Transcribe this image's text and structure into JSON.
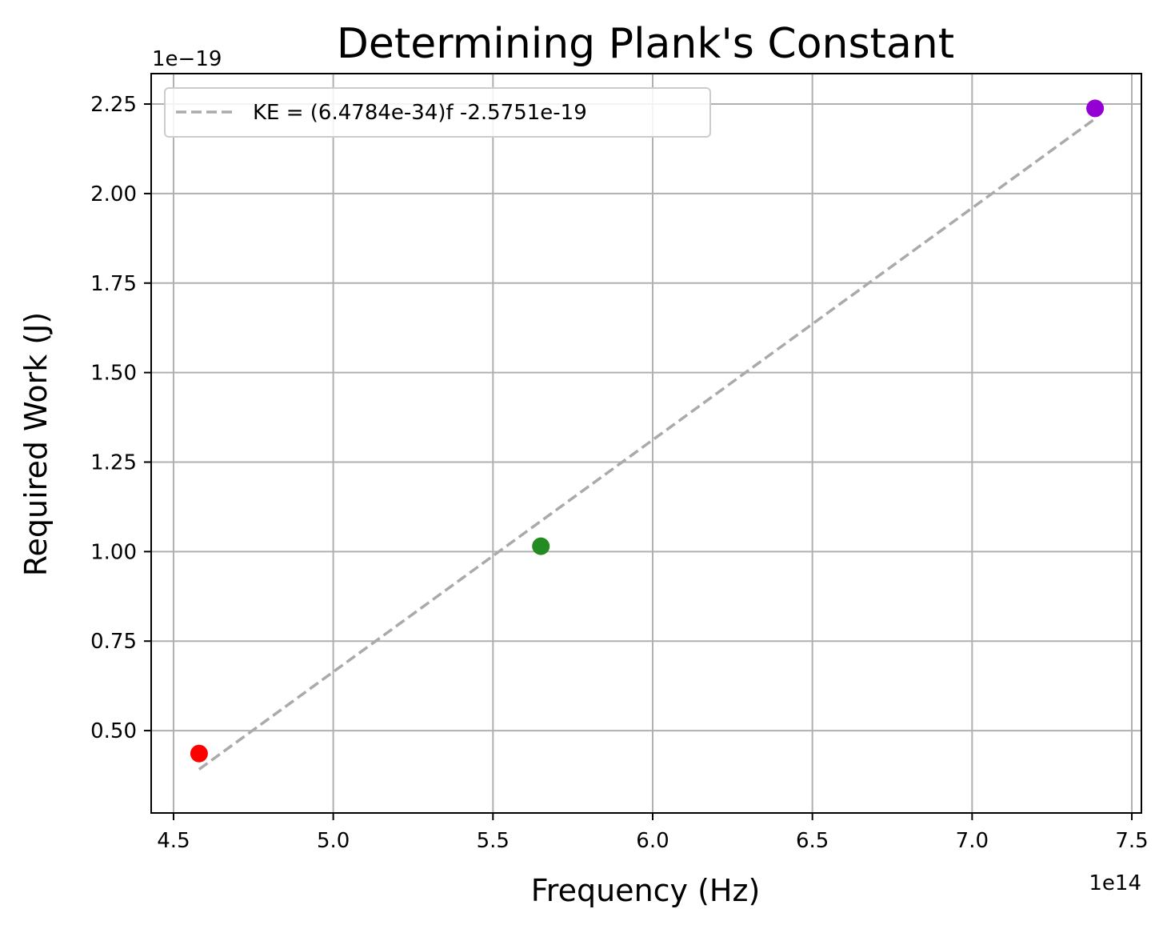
{
  "chart_data": {
    "type": "scatter",
    "title": "Determining Plank's Constant",
    "xlabel": "Frequency (Hz)",
    "ylabel": "Required Work (J)",
    "x_offset_label": "1e14",
    "y_offset_label": "1e−19",
    "xlim": [
      4.43,
      7.53
    ],
    "ylim": [
      0.27,
      2.335
    ],
    "x_scale": 100000000000000.0,
    "y_scale": 1e-19,
    "grid": true,
    "legend_position": "upper-left",
    "xticks": [
      4.5,
      5.0,
      5.5,
      6.0,
      6.5,
      7.0,
      7.5
    ],
    "xtick_labels": [
      "4.5",
      "5.0",
      "5.5",
      "6.0",
      "6.5",
      "7.0",
      "7.5"
    ],
    "yticks": [
      0.5,
      0.75,
      1.0,
      1.25,
      1.5,
      1.75,
      2.0,
      2.25
    ],
    "ytick_labels": [
      "0.50",
      "0.75",
      "1.00",
      "1.25",
      "1.50",
      "1.75",
      "2.00",
      "2.25"
    ],
    "points": [
      {
        "x": 4.58,
        "y": 0.436,
        "color": "#ff0000"
      },
      {
        "x": 5.65,
        "y": 1.015,
        "color": "#228b22"
      },
      {
        "x": 7.385,
        "y": 2.238,
        "color": "#9400d3"
      }
    ],
    "fit_line": {
      "label": "KE = (6.4784e-34)f -2.5751e-19",
      "x": [
        4.58,
        7.385
      ],
      "y": [
        0.392,
        2.209
      ],
      "color": "#aaaaaa",
      "style": "dashed"
    }
  }
}
